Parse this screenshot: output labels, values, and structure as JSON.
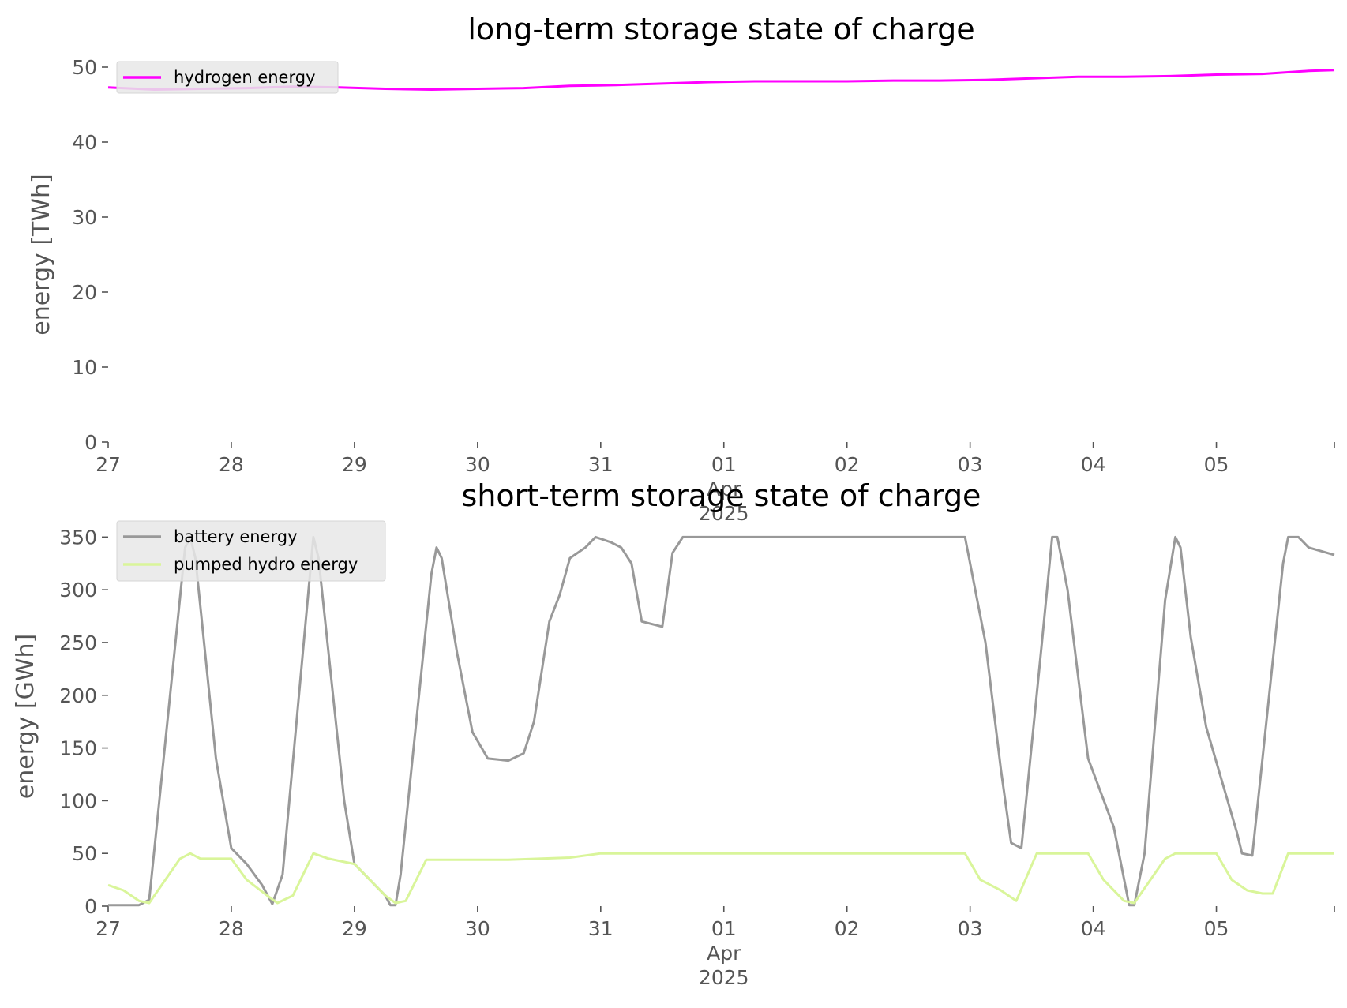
{
  "chart_data": [
    {
      "type": "line",
      "title": "long-term storage state of charge",
      "ylabel": "energy [TWh]",
      "ylim": [
        0,
        50
      ],
      "yticks": [
        0,
        10,
        20,
        30,
        40,
        50
      ],
      "xlim": [
        "2025-03-27",
        "2025-04-05 23:00"
      ],
      "xtick_labels": [
        "27",
        "28",
        "29",
        "30",
        "31",
        "01",
        "02",
        "03",
        "04",
        "05"
      ],
      "xtick_secondary": {
        "label_index": 5,
        "lines": [
          "Apr",
          "2025"
        ]
      },
      "grid": false,
      "legend": "top-left",
      "series": [
        {
          "name": "hydrogen energy",
          "color": "#ff00ff",
          "points": [
            [
              "2025-03-27 00:00",
              47.3
            ],
            [
              "2025-03-27 09:00",
              47.0
            ],
            [
              "2025-03-27 18:00",
              47.1
            ],
            [
              "2025-03-28 03:00",
              47.2
            ],
            [
              "2025-03-28 12:00",
              47.4
            ],
            [
              "2025-03-28 21:00",
              47.3
            ],
            [
              "2025-03-29 06:00",
              47.1
            ],
            [
              "2025-03-29 15:00",
              47.0
            ],
            [
              "2025-03-30 00:00",
              47.1
            ],
            [
              "2025-03-30 09:00",
              47.2
            ],
            [
              "2025-03-30 18:00",
              47.5
            ],
            [
              "2025-03-31 03:00",
              47.6
            ],
            [
              "2025-03-31 12:00",
              47.8
            ],
            [
              "2025-03-31 21:00",
              48.0
            ],
            [
              "2025-04-01 06:00",
              48.1
            ],
            [
              "2025-04-01 15:00",
              48.1
            ],
            [
              "2025-04-02 00:00",
              48.1
            ],
            [
              "2025-04-02 09:00",
              48.2
            ],
            [
              "2025-04-02 18:00",
              48.2
            ],
            [
              "2025-04-03 03:00",
              48.3
            ],
            [
              "2025-04-03 12:00",
              48.5
            ],
            [
              "2025-04-03 21:00",
              48.7
            ],
            [
              "2025-04-04 06:00",
              48.7
            ],
            [
              "2025-04-04 15:00",
              48.8
            ],
            [
              "2025-04-05 00:00",
              49.0
            ],
            [
              "2025-04-05 09:00",
              49.1
            ],
            [
              "2025-04-05 18:00",
              49.5
            ],
            [
              "2025-04-05 23:00",
              49.6
            ]
          ]
        }
      ]
    },
    {
      "type": "line",
      "title": "short-term storage state of charge",
      "ylabel": "energy [GWh]",
      "ylim": [
        0,
        360
      ],
      "yticks": [
        0,
        50,
        100,
        150,
        200,
        250,
        300,
        350
      ],
      "xlim": [
        "2025-03-27",
        "2025-04-05 23:00"
      ],
      "xtick_labels": [
        "27",
        "28",
        "29",
        "30",
        "31",
        "01",
        "02",
        "03",
        "04",
        "05"
      ],
      "xtick_secondary": {
        "label_index": 5,
        "lines": [
          "Apr",
          "2025"
        ]
      },
      "grid": false,
      "legend": "top-left",
      "series": [
        {
          "name": "battery energy",
          "color": "#999999",
          "points": [
            [
              "2025-03-27 00:00",
              1
            ],
            [
              "2025-03-27 06:00",
              1
            ],
            [
              "2025-03-27 08:00",
              6
            ],
            [
              "2025-03-27 15:00",
              340
            ],
            [
              "2025-03-27 16:00",
              350
            ],
            [
              "2025-03-27 17:00",
              330
            ],
            [
              "2025-03-27 21:00",
              140
            ],
            [
              "2025-03-28 00:00",
              55
            ],
            [
              "2025-03-28 03:00",
              40
            ],
            [
              "2025-03-28 06:00",
              20
            ],
            [
              "2025-03-28 08:00",
              2
            ],
            [
              "2025-03-28 10:00",
              30
            ],
            [
              "2025-03-28 16:00",
              350
            ],
            [
              "2025-03-28 17:00",
              330
            ],
            [
              "2025-03-28 22:00",
              100
            ],
            [
              "2025-03-29 00:00",
              40
            ],
            [
              "2025-03-29 03:00",
              25
            ],
            [
              "2025-03-29 06:00",
              10
            ],
            [
              "2025-03-29 07:00",
              1
            ],
            [
              "2025-03-29 08:00",
              1
            ],
            [
              "2025-03-29 09:00",
              30
            ],
            [
              "2025-03-29 15:00",
              315
            ],
            [
              "2025-03-29 16:00",
              340
            ],
            [
              "2025-03-29 17:00",
              330
            ],
            [
              "2025-03-29 20:00",
              240
            ],
            [
              "2025-03-29 23:00",
              165
            ],
            [
              "2025-03-30 02:00",
              140
            ],
            [
              "2025-03-30 06:00",
              138
            ],
            [
              "2025-03-30 09:00",
              145
            ],
            [
              "2025-03-30 11:00",
              175
            ],
            [
              "2025-03-30 14:00",
              270
            ],
            [
              "2025-03-30 16:00",
              295
            ],
            [
              "2025-03-30 18:00",
              330
            ],
            [
              "2025-03-30 21:00",
              340
            ],
            [
              "2025-03-30 23:00",
              350
            ],
            [
              "2025-03-31 02:00",
              345
            ],
            [
              "2025-03-31 04:00",
              340
            ],
            [
              "2025-03-31 06:00",
              325
            ],
            [
              "2025-03-31 08:00",
              270
            ],
            [
              "2025-03-31 12:00",
              265
            ],
            [
              "2025-03-31 14:00",
              335
            ],
            [
              "2025-03-31 16:00",
              350
            ],
            [
              "2025-04-02 23:00",
              350
            ],
            [
              "2025-04-03 03:00",
              250
            ],
            [
              "2025-04-03 06:00",
              130
            ],
            [
              "2025-04-03 08:00",
              60
            ],
            [
              "2025-04-03 10:00",
              55
            ],
            [
              "2025-04-03 14:00",
              250
            ],
            [
              "2025-04-03 16:00",
              350
            ],
            [
              "2025-04-03 17:00",
              350
            ],
            [
              "2025-04-03 19:00",
              300
            ],
            [
              "2025-04-03 23:00",
              140
            ],
            [
              "2025-04-04 04:00",
              75
            ],
            [
              "2025-04-04 07:00",
              1
            ],
            [
              "2025-04-04 08:00",
              1
            ],
            [
              "2025-04-04 10:00",
              50
            ],
            [
              "2025-04-04 14:00",
              290
            ],
            [
              "2025-04-04 16:00",
              350
            ],
            [
              "2025-04-04 17:00",
              340
            ],
            [
              "2025-04-04 19:00",
              255
            ],
            [
              "2025-04-04 22:00",
              170
            ],
            [
              "2025-04-05 04:00",
              70
            ],
            [
              "2025-04-05 05:00",
              50
            ],
            [
              "2025-04-05 07:00",
              48
            ],
            [
              "2025-04-05 13:00",
              325
            ],
            [
              "2025-04-05 14:00",
              350
            ],
            [
              "2025-04-05 16:00",
              350
            ],
            [
              "2025-04-05 18:00",
              340
            ],
            [
              "2025-04-05 23:00",
              333
            ]
          ]
        },
        {
          "name": "pumped hydro energy",
          "color": "#d9f59a",
          "points": [
            [
              "2025-03-27 00:00",
              20
            ],
            [
              "2025-03-27 03:00",
              15
            ],
            [
              "2025-03-27 06:00",
              5
            ],
            [
              "2025-03-27 08:00",
              3
            ],
            [
              "2025-03-27 14:00",
              45
            ],
            [
              "2025-03-27 16:00",
              50
            ],
            [
              "2025-03-27 18:00",
              45
            ],
            [
              "2025-03-28 00:00",
              45
            ],
            [
              "2025-03-28 03:00",
              25
            ],
            [
              "2025-03-28 07:00",
              10
            ],
            [
              "2025-03-28 09:00",
              3
            ],
            [
              "2025-03-28 12:00",
              10
            ],
            [
              "2025-03-28 16:00",
              50
            ],
            [
              "2025-03-28 19:00",
              45
            ],
            [
              "2025-03-29 00:00",
              40
            ],
            [
              "2025-03-29 03:00",
              25
            ],
            [
              "2025-03-29 06:00",
              10
            ],
            [
              "2025-03-29 08:00",
              3
            ],
            [
              "2025-03-29 10:00",
              5
            ],
            [
              "2025-03-29 14:00",
              44
            ],
            [
              "2025-03-30 06:00",
              44
            ],
            [
              "2025-03-30 18:00",
              46
            ],
            [
              "2025-03-31 00:00",
              50
            ],
            [
              "2025-04-02 23:00",
              50
            ],
            [
              "2025-04-03 02:00",
              25
            ],
            [
              "2025-04-03 06:00",
              15
            ],
            [
              "2025-04-03 09:00",
              5
            ],
            [
              "2025-04-03 13:00",
              50
            ],
            [
              "2025-04-03 23:00",
              50
            ],
            [
              "2025-04-04 02:00",
              25
            ],
            [
              "2025-04-04 06:00",
              5
            ],
            [
              "2025-04-04 08:00",
              3
            ],
            [
              "2025-04-04 14:00",
              45
            ],
            [
              "2025-04-04 16:00",
              50
            ],
            [
              "2025-04-05 00:00",
              50
            ],
            [
              "2025-04-05 03:00",
              25
            ],
            [
              "2025-04-05 06:00",
              15
            ],
            [
              "2025-04-05 09:00",
              12
            ],
            [
              "2025-04-05 11:00",
              12
            ],
            [
              "2025-04-05 14:00",
              50
            ],
            [
              "2025-04-05 23:00",
              50
            ]
          ]
        }
      ]
    }
  ]
}
